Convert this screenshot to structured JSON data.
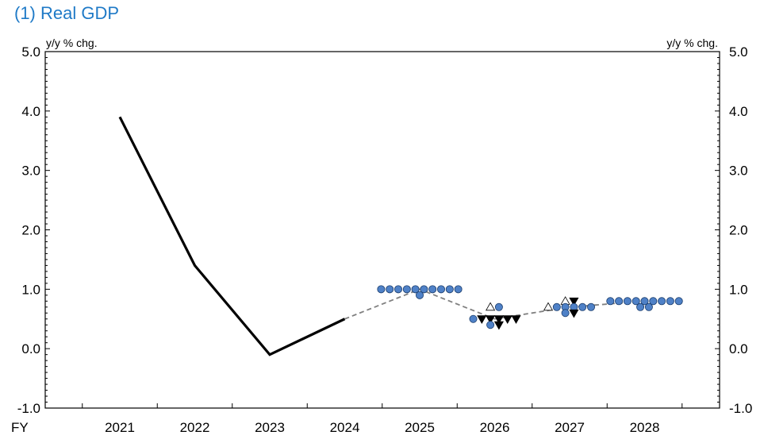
{
  "title": "(1) Real GDP",
  "chart_data": {
    "type": "line",
    "title": "(1) Real GDP",
    "ylabel_left": "y/y % chg.",
    "ylabel_right": "y/y % chg.",
    "x_axis_label": "FY",
    "categories": [
      "2021",
      "2022",
      "2023",
      "2024",
      "2025",
      "2026",
      "2027",
      "2028"
    ],
    "ylim": [
      -1.0,
      5.0
    ],
    "yticks": [
      "-1.0",
      "0.0",
      "1.0",
      "2.0",
      "3.0",
      "4.0",
      "5.0"
    ],
    "ytick_values": [
      -1,
      0,
      1,
      2,
      3,
      4,
      5
    ],
    "grid": false,
    "series": [
      {
        "kind": "actual",
        "style": "solid",
        "color": "#000000",
        "points": [
          {
            "x": "2021",
            "y": 3.9
          },
          {
            "x": "2022",
            "y": 1.4
          },
          {
            "x": "2023",
            "y": -0.1
          },
          {
            "x": "2024",
            "y": 0.5
          }
        ]
      },
      {
        "kind": "median forecast",
        "style": "dashed",
        "color": "#808080",
        "points": [
          {
            "x": "2024",
            "y": 0.5
          },
          {
            "x": "2025",
            "y": 1.0
          },
          {
            "x": "2026",
            "y": 0.5
          },
          {
            "x": "2027",
            "y": 0.7
          },
          {
            "x": "2028",
            "y": 0.8
          }
        ]
      }
    ],
    "dots": [
      {
        "year": "2025",
        "rows": [
          {
            "y": 1.0,
            "markers": [
              "circle",
              "circle",
              "circle",
              "circle",
              "circle",
              "circle",
              "circle",
              "circle",
              "circle",
              "circle"
            ]
          },
          {
            "y": 0.9,
            "markers": [
              "circle"
            ]
          }
        ]
      },
      {
        "year": "2026",
        "rows": [
          {
            "y": 0.7,
            "markers": [
              "up-triangle",
              "circle"
            ]
          },
          {
            "y": 0.5,
            "markers": [
              "circle",
              "down-triangle",
              "down-triangle",
              "down-triangle",
              "down-triangle",
              "down-triangle"
            ]
          },
          {
            "y": 0.4,
            "markers": [
              "circle",
              "down-triangle"
            ]
          }
        ]
      },
      {
        "year": "2027",
        "rows": [
          {
            "y": 0.8,
            "markers": [
              "up-triangle",
              "down-triangle"
            ]
          },
          {
            "y": 0.7,
            "markers": [
              "up-triangle",
              "circle",
              "circle",
              "circle",
              "circle",
              "circle"
            ]
          },
          {
            "y": 0.6,
            "markers": [
              "circle",
              "down-triangle"
            ]
          }
        ]
      },
      {
        "year": "2028",
        "rows": [
          {
            "y": 0.8,
            "markers": [
              "circle",
              "circle",
              "circle",
              "circle",
              "circle",
              "circle",
              "circle",
              "circle",
              "circle"
            ]
          },
          {
            "y": 0.7,
            "markers": [
              "circle",
              "circle"
            ]
          }
        ]
      }
    ],
    "colors": {
      "circle_fill": "#4f81c7",
      "up_triangle_fill": "#ffffff",
      "down_triangle_fill": "#000000"
    }
  }
}
